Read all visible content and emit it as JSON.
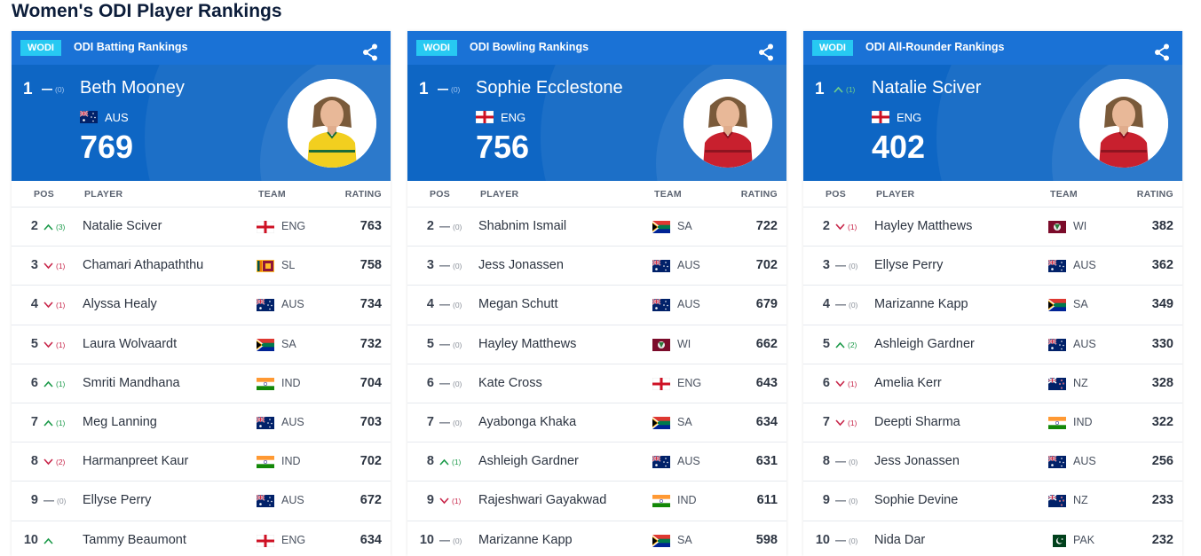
{
  "page": {
    "title": "Women's ODI Player Rankings"
  },
  "panels": [
    {
      "badge": "WODI",
      "title": "ODI Batting Rankings",
      "headers": {
        "pos": "POS",
        "player": "PLAYER",
        "team": "TEAM",
        "rating": "RATING"
      },
      "top": {
        "pos": "1",
        "move": "flat",
        "change": "(0)",
        "name": "Beth Mooney",
        "team": "AUS",
        "flag": "aus",
        "rating": "769",
        "kit": "yellow"
      },
      "rows": [
        {
          "pos": "2",
          "move": "up",
          "change": "(3)",
          "name": "Natalie Sciver",
          "team": "ENG",
          "flag": "eng",
          "rating": "763"
        },
        {
          "pos": "3",
          "move": "down",
          "change": "(1)",
          "name": "Chamari Athapaththu",
          "team": "SL",
          "flag": "sl",
          "rating": "758"
        },
        {
          "pos": "4",
          "move": "down",
          "change": "(1)",
          "name": "Alyssa Healy",
          "team": "AUS",
          "flag": "aus",
          "rating": "734"
        },
        {
          "pos": "5",
          "move": "down",
          "change": "(1)",
          "name": "Laura Wolvaardt",
          "team": "SA",
          "flag": "sa",
          "rating": "732"
        },
        {
          "pos": "6",
          "move": "up",
          "change": "(1)",
          "name": "Smriti Mandhana",
          "team": "IND",
          "flag": "ind",
          "rating": "704"
        },
        {
          "pos": "7",
          "move": "up",
          "change": "(1)",
          "name": "Meg Lanning",
          "team": "AUS",
          "flag": "aus",
          "rating": "703"
        },
        {
          "pos": "8",
          "move": "down",
          "change": "(2)",
          "name": "Harmanpreet Kaur",
          "team": "IND",
          "flag": "ind",
          "rating": "702"
        },
        {
          "pos": "9",
          "move": "flat",
          "change": "(0)",
          "name": "Ellyse Perry",
          "team": "AUS",
          "flag": "aus",
          "rating": "672"
        },
        {
          "pos": "10",
          "move": "up",
          "change": "",
          "name": "Tammy Beaumont",
          "team": "ENG",
          "flag": "eng",
          "rating": "634"
        }
      ]
    },
    {
      "badge": "WODI",
      "title": "ODI Bowling Rankings",
      "headers": {
        "pos": "POS",
        "player": "PLAYER",
        "team": "TEAM",
        "rating": "RATING"
      },
      "top": {
        "pos": "1",
        "move": "flat",
        "change": "(0)",
        "name": "Sophie Ecclestone",
        "team": "ENG",
        "flag": "eng",
        "rating": "756",
        "kit": "red"
      },
      "rows": [
        {
          "pos": "2",
          "move": "flat",
          "change": "(0)",
          "name": "Shabnim Ismail",
          "team": "SA",
          "flag": "sa",
          "rating": "722"
        },
        {
          "pos": "3",
          "move": "flat",
          "change": "(0)",
          "name": "Jess Jonassen",
          "team": "AUS",
          "flag": "aus",
          "rating": "702"
        },
        {
          "pos": "4",
          "move": "flat",
          "change": "(0)",
          "name": "Megan Schutt",
          "team": "AUS",
          "flag": "aus",
          "rating": "679"
        },
        {
          "pos": "5",
          "move": "flat",
          "change": "(0)",
          "name": "Hayley Matthews",
          "team": "WI",
          "flag": "wi",
          "rating": "662"
        },
        {
          "pos": "6",
          "move": "flat",
          "change": "(0)",
          "name": "Kate Cross",
          "team": "ENG",
          "flag": "eng",
          "rating": "643"
        },
        {
          "pos": "7",
          "move": "flat",
          "change": "(0)",
          "name": "Ayabonga Khaka",
          "team": "SA",
          "flag": "sa",
          "rating": "634"
        },
        {
          "pos": "8",
          "move": "up",
          "change": "(1)",
          "name": "Ashleigh Gardner",
          "team": "AUS",
          "flag": "aus",
          "rating": "631"
        },
        {
          "pos": "9",
          "move": "down",
          "change": "(1)",
          "name": "Rajeshwari Gayakwad",
          "team": "IND",
          "flag": "ind",
          "rating": "611"
        },
        {
          "pos": "10",
          "move": "flat",
          "change": "(0)",
          "name": "Marizanne Kapp",
          "team": "SA",
          "flag": "sa",
          "rating": "598"
        }
      ]
    },
    {
      "badge": "WODI",
      "title": "ODI All-Rounder Rankings",
      "headers": {
        "pos": "POS",
        "player": "PLAYER",
        "team": "TEAM",
        "rating": "RATING"
      },
      "top": {
        "pos": "1",
        "move": "up",
        "change": "(1)",
        "name": "Natalie Sciver",
        "team": "ENG",
        "flag": "eng",
        "rating": "402",
        "kit": "red"
      },
      "rows": [
        {
          "pos": "2",
          "move": "down",
          "change": "(1)",
          "name": "Hayley Matthews",
          "team": "WI",
          "flag": "wi",
          "rating": "382"
        },
        {
          "pos": "3",
          "move": "flat",
          "change": "(0)",
          "name": "Ellyse Perry",
          "team": "AUS",
          "flag": "aus",
          "rating": "362"
        },
        {
          "pos": "4",
          "move": "flat",
          "change": "(0)",
          "name": "Marizanne Kapp",
          "team": "SA",
          "flag": "sa",
          "rating": "349"
        },
        {
          "pos": "5",
          "move": "up",
          "change": "(2)",
          "name": "Ashleigh Gardner",
          "team": "AUS",
          "flag": "aus",
          "rating": "330"
        },
        {
          "pos": "6",
          "move": "down",
          "change": "(1)",
          "name": "Amelia Kerr",
          "team": "NZ",
          "flag": "nz",
          "rating": "328"
        },
        {
          "pos": "7",
          "move": "down",
          "change": "(1)",
          "name": "Deepti Sharma",
          "team": "IND",
          "flag": "ind",
          "rating": "322"
        },
        {
          "pos": "8",
          "move": "flat",
          "change": "(0)",
          "name": "Jess Jonassen",
          "team": "AUS",
          "flag": "aus",
          "rating": "256"
        },
        {
          "pos": "9",
          "move": "flat",
          "change": "(0)",
          "name": "Sophie Devine",
          "team": "NZ",
          "flag": "nz",
          "rating": "233"
        },
        {
          "pos": "10",
          "move": "flat",
          "change": "(0)",
          "name": "Nida Dar",
          "team": "PAK",
          "flag": "pak",
          "rating": "232"
        }
      ]
    }
  ],
  "icons": {
    "share": "share-icon",
    "up": "chevron-up-icon",
    "down": "chevron-down-icon",
    "flat": "dash-icon"
  },
  "colors": {
    "hero": "#0e66c4",
    "badge": "#27c9f2",
    "up": "#1c9a4a",
    "down": "#c8264a",
    "flat": "#8a909a"
  }
}
